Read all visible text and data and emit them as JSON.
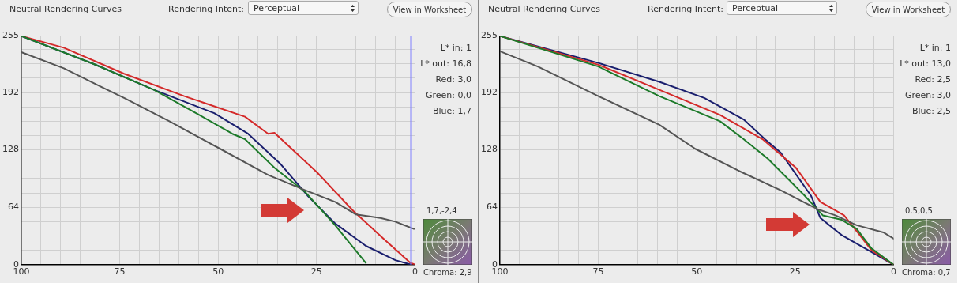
{
  "chart_data": [
    {
      "type": "line",
      "title": "Neutral Rendering Curves",
      "xlim": [
        100,
        0
      ],
      "ylim": [
        0,
        255
      ],
      "xticks": [
        100,
        {
          "value": 95,
          "label": null
        },
        {
          "value": 90,
          "label": null
        },
        {
          "value": 85,
          "label": null
        },
        {
          "value": 80,
          "label": null
        },
        75,
        {
          "value": 70,
          "label": null
        },
        {
          "value": 65,
          "label": null
        },
        {
          "value": 60,
          "label": null
        },
        {
          "value": 55,
          "label": null
        },
        50,
        {
          "value": 45,
          "label": null
        },
        {
          "value": 40,
          "label": null
        },
        {
          "value": 35,
          "label": null
        },
        {
          "value": 30,
          "label": null
        },
        25,
        {
          "value": 20,
          "label": null
        },
        {
          "value": 15,
          "label": null
        },
        {
          "value": 10,
          "label": null
        },
        {
          "value": 5,
          "label": null
        },
        0
      ],
      "yticks": [
        0,
        {
          "value": 16,
          "label": null
        },
        {
          "value": 32,
          "label": null
        },
        {
          "value": 48,
          "label": null
        },
        64,
        {
          "value": 80,
          "label": null
        },
        {
          "value": 96,
          "label": null
        },
        {
          "value": 112,
          "label": null
        },
        128,
        {
          "value": 144,
          "label": null
        },
        {
          "value": 160,
          "label": null
        },
        {
          "value": 176,
          "label": null
        },
        192,
        {
          "value": 208,
          "label": null
        },
        {
          "value": 224,
          "label": null
        },
        {
          "value": 240,
          "label": null
        },
        255
      ],
      "grid": true,
      "legend": false,
      "marker": "none",
      "line_style": "solid",
      "series": [
        {
          "color": "#555555",
          "x": [
            100,
            89.2,
            80,
            73.9,
            62.4,
            54,
            49.4,
            37.3,
            27.9,
            20.3,
            15,
            8.8,
            5,
            0.4,
            0
          ],
          "values": [
            237,
            219,
            199,
            186,
            160,
            140,
            129,
            100,
            83,
            70,
            56,
            52,
            48,
            40,
            40
          ]
        },
        {
          "color": "#1d7a2a",
          "x": [
            100,
            81.7,
            66.3,
            54.8,
            46.4,
            43.2,
            35.7,
            27.9,
            20.3,
            12.5
          ],
          "values": [
            255,
            224,
            195,
            167,
            146,
            140,
            108,
            81,
            44,
            2
          ]
        },
        {
          "color": "#1a1f6e",
          "x": [
            100,
            81.7,
            66.3,
            51,
            42.4,
            34.1,
            27.3,
            20.3,
            12.5,
            5,
            1
          ],
          "values": [
            255,
            224,
            195,
            169,
            146,
            112,
            77,
            46,
            21,
            5,
            0
          ]
        },
        {
          "color": "#d42a2a",
          "x": [
            100,
            89.2,
            73.9,
            58.6,
            43.2,
            37.3,
            35.7,
            24.9,
            15.7,
            8,
            1.2,
            0
          ],
          "values": [
            255,
            242,
            213,
            188,
            165,
            146,
            147,
            103,
            60,
            29,
            2,
            0
          ]
        }
      ],
      "ref_lines": [
        {
          "axis": "x",
          "value": 1,
          "color": "#8080ff"
        }
      ],
      "annotations": [
        "Rendering Intent:",
        "Perceptual",
        "View in Worksheet",
        "L* in: 1",
        "L* out: 16,8",
        "Red: 3,0",
        "Green: 0,0",
        "Blue: 1,7",
        "1,7,-2,4",
        "Chroma: 2,9"
      ]
    },
    {
      "type": "line",
      "title": "Neutral Rendering Curves",
      "xlim": [
        100,
        0
      ],
      "ylim": [
        0,
        255
      ],
      "xticks": [
        100,
        {
          "value": 95,
          "label": null
        },
        {
          "value": 90,
          "label": null
        },
        {
          "value": 85,
          "label": null
        },
        {
          "value": 80,
          "label": null
        },
        75,
        {
          "value": 70,
          "label": null
        },
        {
          "value": 65,
          "label": null
        },
        {
          "value": 60,
          "label": null
        },
        {
          "value": 55,
          "label": null
        },
        50,
        {
          "value": 45,
          "label": null
        },
        {
          "value": 40,
          "label": null
        },
        {
          "value": 35,
          "label": null
        },
        {
          "value": 30,
          "label": null
        },
        25,
        {
          "value": 20,
          "label": null
        },
        {
          "value": 15,
          "label": null
        },
        {
          "value": 10,
          "label": null
        },
        {
          "value": 5,
          "label": null
        },
        0
      ],
      "yticks": [
        0,
        {
          "value": 16,
          "label": null
        },
        {
          "value": 32,
          "label": null
        },
        {
          "value": 48,
          "label": null
        },
        64,
        {
          "value": 80,
          "label": null
        },
        {
          "value": 96,
          "label": null
        },
        {
          "value": 112,
          "label": null
        },
        128,
        {
          "value": 144,
          "label": null
        },
        {
          "value": 160,
          "label": null
        },
        {
          "value": 176,
          "label": null
        },
        192,
        {
          "value": 208,
          "label": null
        },
        {
          "value": 224,
          "label": null
        },
        {
          "value": 240,
          "label": null
        },
        255
      ],
      "grid": true,
      "legend": false,
      "marker": "none",
      "line_style": "solid",
      "series": [
        {
          "color": "#555555",
          "x": [
            100,
            90.4,
            75,
            59.5,
            50.3,
            39.5,
            28.7,
            19.4,
            14.8,
            9.4,
            2.6,
            0
          ],
          "values": [
            238,
            221,
            188,
            156,
            129,
            105,
            83,
            62,
            55,
            44,
            36,
            29
          ]
        },
        {
          "color": "#1d7a2a",
          "x": [
            100,
            75,
            59.5,
            44.1,
            38.1,
            31.9,
            22.6,
            18,
            13.2,
            9.4,
            5.6,
            0
          ],
          "values": [
            255,
            221,
            188,
            160,
            140,
            118,
            77,
            55,
            50,
            40,
            18,
            0
          ]
        },
        {
          "color": "#d42a2a",
          "x": [
            100,
            75,
            59.5,
            44.1,
            33.3,
            24.8,
            18.6,
            12.6,
            8.6,
            5.6,
            0
          ],
          "values": [
            255,
            223,
            195,
            167,
            140,
            108,
            70,
            55,
            33,
            16,
            0
          ]
        },
        {
          "color": "#1a1f6e",
          "x": [
            100,
            75,
            59.5,
            48.1,
            38.1,
            32.7,
            28.7,
            21,
            18.6,
            13.2,
            7.2,
            0
          ],
          "values": [
            255,
            225,
            204,
            186,
            162,
            140,
            125,
            77,
            52,
            33,
            18,
            0
          ]
        }
      ],
      "annotations": [
        "Rendering Intent:",
        "Perceptual",
        "View in Worksheet",
        "L* in: 1",
        "L* out: 13,0",
        "Red: 2,5",
        "Green: 3,0",
        "Blue: 2,5",
        "0,5,0,5",
        "Chroma: 0,7"
      ]
    }
  ]
}
